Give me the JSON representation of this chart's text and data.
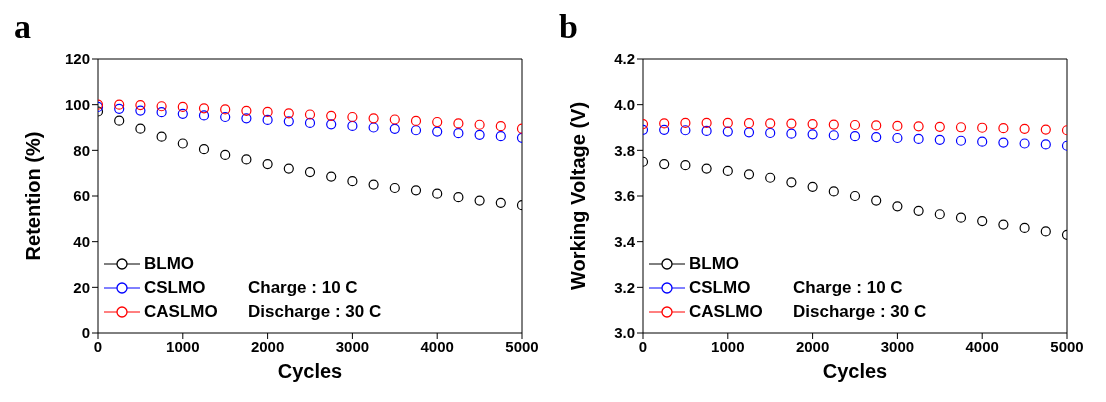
{
  "chart_data": [
    {
      "type": "scatter",
      "title": "a",
      "xlabel": "Cycles",
      "ylabel": "Retention (%)",
      "marker": "circle",
      "legend": "bottom left",
      "grid": false,
      "x": [
        0,
        250,
        500,
        750,
        1000,
        1250,
        1500,
        1750,
        2000,
        2250,
        2500,
        2750,
        3000,
        3250,
        3500,
        3750,
        4000,
        4250,
        4500,
        4750,
        5000
      ],
      "xlim": [
        0,
        5000
      ],
      "xticks": [
        0,
        1000,
        2000,
        3000,
        4000,
        5000
      ],
      "ylim": [
        0,
        120
      ],
      "yticks": [
        0,
        20,
        40,
        60,
        80,
        100,
        120
      ],
      "annotations": [
        "Charge : 10 C",
        "Discharge : 30 C"
      ],
      "series": [
        {
          "name": "BLMO",
          "color": "#000000",
          "values": [
            97,
            93,
            89.5,
            86,
            83,
            80.5,
            78,
            76,
            74,
            72,
            70.5,
            68.5,
            66.5,
            65,
            63.5,
            62.5,
            61,
            59.5,
            58,
            57,
            56
          ]
        },
        {
          "name": "CSLMO",
          "color": "#0000ff",
          "values": [
            99,
            98.2,
            97.4,
            96.7,
            96,
            95.3,
            94.6,
            94,
            93.3,
            92.7,
            92,
            91.4,
            90.7,
            90,
            89.4,
            88.8,
            88.2,
            87.5,
            86.8,
            86.2,
            85.5
          ]
        },
        {
          "name": "CASLMO",
          "color": "#ff0000",
          "values": [
            100,
            100,
            99.8,
            99.3,
            99,
            98.4,
            97.9,
            97.3,
            96.8,
            96.2,
            95.7,
            95.1,
            94.6,
            94,
            93.5,
            92.9,
            92.4,
            91.8,
            91.2,
            90.6,
            89.5
          ]
        }
      ]
    },
    {
      "type": "scatter",
      "title": "b",
      "xlabel": "Cycles",
      "ylabel": "Working Voltage (V)",
      "marker": "circle",
      "legend": "bottom left",
      "grid": false,
      "x": [
        0,
        250,
        500,
        750,
        1000,
        1250,
        1500,
        1750,
        2000,
        2250,
        2500,
        2750,
        3000,
        3250,
        3500,
        3750,
        4000,
        4250,
        4500,
        4750,
        5000
      ],
      "xlim": [
        0,
        5000
      ],
      "xticks": [
        0,
        1000,
        2000,
        3000,
        4000,
        5000
      ],
      "ylim": [
        3.0,
        4.2
      ],
      "yticks": [
        {
          "value": 3,
          "label": "3.0"
        },
        3.2,
        3.4,
        3.6,
        3.8,
        {
          "value": 4,
          "label": "4.0"
        },
        4.2
      ],
      "annotations": [
        "Charge : 10 C",
        "Discharge : 30 C"
      ],
      "series": [
        {
          "name": "BLMO",
          "color": "#000000",
          "values": [
            3.75,
            3.74,
            3.735,
            3.72,
            3.71,
            3.695,
            3.68,
            3.66,
            3.64,
            3.62,
            3.6,
            3.58,
            3.555,
            3.535,
            3.52,
            3.505,
            3.49,
            3.475,
            3.46,
            3.445,
            3.43
          ]
        },
        {
          "name": "CSLMO",
          "color": "#0000ff",
          "values": [
            3.89,
            3.89,
            3.888,
            3.885,
            3.882,
            3.879,
            3.876,
            3.873,
            3.87,
            3.866,
            3.862,
            3.858,
            3.854,
            3.85,
            3.846,
            3.842,
            3.838,
            3.834,
            3.83,
            3.826,
            3.82
          ]
        },
        {
          "name": "CASLMO",
          "color": "#ff0000",
          "values": [
            3.915,
            3.918,
            3.92,
            3.92,
            3.92,
            3.919,
            3.918,
            3.917,
            3.915,
            3.913,
            3.911,
            3.909,
            3.907,
            3.905,
            3.903,
            3.901,
            3.899,
            3.897,
            3.894,
            3.891,
            3.888
          ]
        }
      ]
    }
  ]
}
